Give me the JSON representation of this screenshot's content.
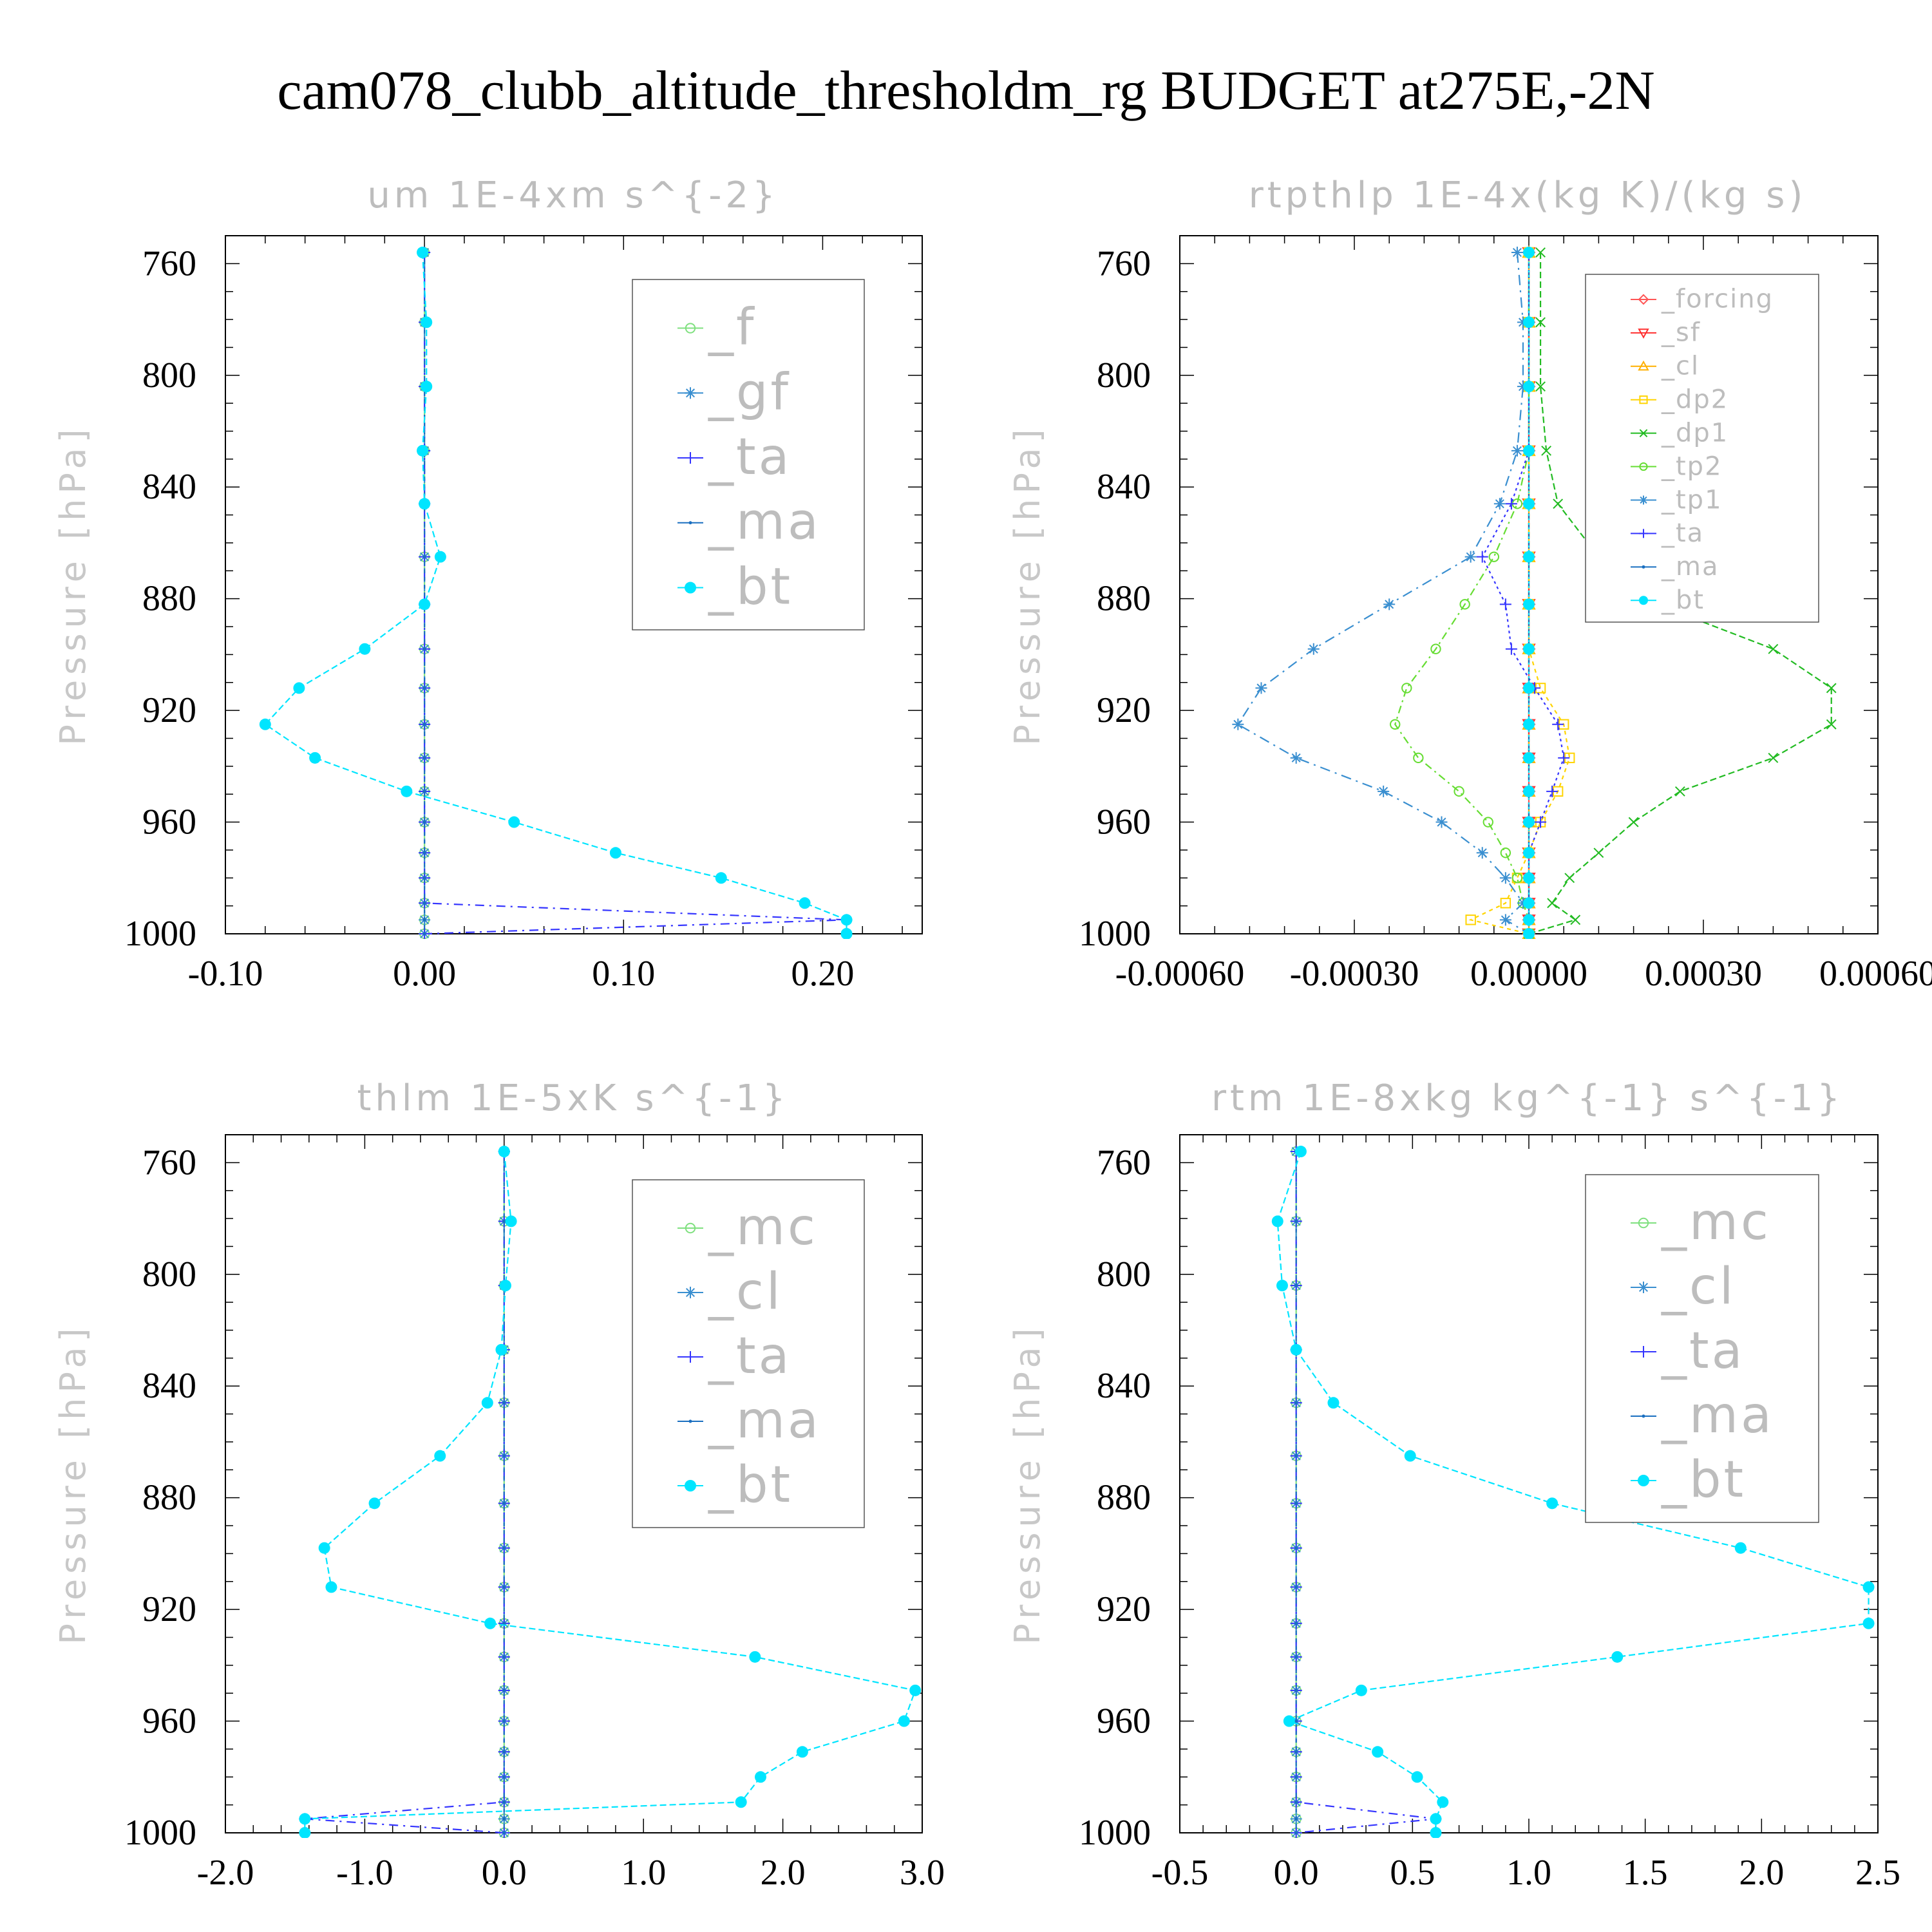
{
  "page_title": "cam078_clubb_altitude_thresholdm_rg  BUDGET at275E,-2N",
  "y_axis_label": "Pressure [hPa]",
  "chart_data": [
    {
      "type": "line",
      "title": "um  1E-4xm s^{-2}",
      "ylabel": "Pressure [hPa]",
      "y_inverted": true,
      "ylim": [
        1000,
        750
      ],
      "xlim": [
        -0.1,
        0.25
      ],
      "xticks": [
        -0.1,
        0.0,
        0.1,
        0.2
      ],
      "xtick_labels": [
        "-0.10",
        "0.00",
        "0.10",
        "0.20"
      ],
      "yticks": [
        760,
        800,
        840,
        880,
        920,
        960,
        1000
      ],
      "legend_placement": "top-right",
      "y": [
        756,
        781,
        804,
        827,
        846,
        865,
        882,
        898,
        912,
        925,
        937,
        949,
        960,
        971,
        980,
        989,
        995,
        1000
      ],
      "series": [
        {
          "name": "_f",
          "color": "#7fe07f",
          "marker": "circle-open",
          "values": [
            0,
            0,
            0,
            0,
            0,
            0,
            0,
            0,
            0,
            0,
            0,
            0,
            0,
            0,
            0,
            0,
            0,
            0
          ]
        },
        {
          "name": "_gf",
          "color": "#3a8fd0",
          "marker": "asterisk",
          "values": [
            0,
            0,
            0,
            0,
            0,
            0,
            0,
            0,
            0,
            0,
            0,
            0,
            0,
            0,
            0,
            0,
            0,
            0
          ]
        },
        {
          "name": "_ta",
          "color": "#3535ff",
          "marker": "plus",
          "values": [
            0,
            0,
            0,
            0,
            0,
            0,
            0,
            0,
            0,
            0,
            0,
            0,
            0,
            0,
            0,
            0,
            0.212,
            0.0
          ]
        },
        {
          "name": "_ma",
          "color": "#1a6fc0",
          "marker": "dot",
          "values": [
            0,
            0,
            0,
            0,
            0,
            0,
            0,
            0,
            0,
            0,
            0,
            0,
            0,
            0,
            0,
            0,
            0,
            0
          ]
        },
        {
          "name": "_bt",
          "color": "#00e5ff",
          "marker": "filled-circle",
          "values": [
            -0.001,
            0.001,
            0.001,
            -0.001,
            0.0,
            0.008,
            0.0,
            -0.03,
            -0.063,
            -0.08,
            -0.055,
            -0.009,
            0.045,
            0.096,
            0.149,
            0.191,
            0.212,
            0.212
          ]
        }
      ]
    },
    {
      "type": "line",
      "title": "rtpthlp  1E-4x(kg K)/(kg s)",
      "ylabel": "Pressure [hPa]",
      "y_inverted": true,
      "ylim": [
        1000,
        750
      ],
      "xlim": [
        -0.0006,
        0.0006
      ],
      "xticks": [
        -0.0006,
        -0.0003,
        0.0,
        0.0003,
        0.0006
      ],
      "xtick_labels": [
        "-0.00060",
        "-0.00030",
        "0.00000",
        "0.00030",
        "0.00060"
      ],
      "yticks": [
        760,
        800,
        840,
        880,
        920,
        960,
        1000
      ],
      "legend_placement": "top-right",
      "y": [
        756,
        781,
        804,
        827,
        846,
        865,
        882,
        898,
        912,
        925,
        937,
        949,
        960,
        971,
        980,
        989,
        995,
        1000
      ],
      "series": [
        {
          "name": "_forcing",
          "color": "#ff5555",
          "marker": "diamond",
          "values": [
            0,
            0,
            0,
            0,
            0,
            0,
            0,
            0,
            0,
            0,
            0,
            0,
            0,
            0,
            0,
            0,
            0,
            0
          ]
        },
        {
          "name": "_sf",
          "color": "#ff3030",
          "marker": "triangle-down",
          "values": [
            0,
            0,
            0,
            0,
            0,
            0,
            0,
            0,
            0,
            0,
            0,
            0,
            0,
            0,
            0,
            0,
            0,
            0
          ]
        },
        {
          "name": "_cl",
          "color": "#ffb000",
          "marker": "triangle-up",
          "values": [
            0,
            0,
            0,
            0,
            0,
            0,
            0,
            0,
            0,
            0,
            0,
            0,
            0,
            0,
            0,
            0,
            0,
            0
          ]
        },
        {
          "name": "_dp2",
          "color": "#ffd400",
          "marker": "square",
          "values": [
            0,
            0,
            0,
            0,
            0,
            0.0,
            0.0,
            0.0,
            2e-05,
            6e-05,
            7e-05,
            5e-05,
            2e-05,
            0.0,
            -2e-05,
            -4e-05,
            -0.0001,
            0.0
          ]
        },
        {
          "name": "_dp1",
          "color": "#22bb22",
          "marker": "cross",
          "values": [
            2e-05,
            2e-05,
            2e-05,
            3e-05,
            5e-05,
            0.00012,
            0.00022,
            0.00042,
            0.00052,
            0.00052,
            0.00042,
            0.00026,
            0.00018,
            0.00012,
            7e-05,
            4e-05,
            8e-05,
            0.0
          ]
        },
        {
          "name": "_tp2",
          "color": "#66dd33",
          "marker": "circle-open",
          "values": [
            0,
            0,
            0,
            0,
            -2e-05,
            -6e-05,
            -0.00011,
            -0.00016,
            -0.00021,
            -0.00023,
            -0.00019,
            -0.00012,
            -7e-05,
            -4e-05,
            -2e-05,
            -1e-05,
            0.0,
            0.0
          ]
        },
        {
          "name": "_tp1",
          "color": "#3a8fd0",
          "marker": "asterisk",
          "values": [
            -2e-05,
            -1e-05,
            -1e-05,
            -2e-05,
            -5e-05,
            -0.0001,
            -0.00024,
            -0.00037,
            -0.00046,
            -0.0005,
            -0.0004,
            -0.00025,
            -0.00015,
            -8e-05,
            -4e-05,
            -1e-05,
            -4e-05,
            0.0
          ]
        },
        {
          "name": "_ta",
          "color": "#3535ff",
          "marker": "plus",
          "values": [
            0,
            0,
            0,
            0,
            -3e-05,
            -8e-05,
            -4e-05,
            -3e-05,
            1e-05,
            5e-05,
            6e-05,
            4e-05,
            2e-05,
            0.0,
            0.0,
            0.0,
            0.0,
            0.0
          ]
        },
        {
          "name": "_ma",
          "color": "#1a6fc0",
          "marker": "dot",
          "values": [
            0,
            0,
            0,
            0,
            0,
            0,
            0,
            0,
            0,
            0,
            0,
            0,
            0,
            0,
            0,
            0,
            0,
            0
          ]
        },
        {
          "name": "_bt",
          "color": "#00e5ff",
          "marker": "filled-circle",
          "values": [
            0,
            0,
            0,
            0,
            0,
            0,
            0,
            0,
            0,
            0,
            0,
            0,
            0,
            0,
            0,
            0,
            0,
            0
          ]
        }
      ]
    },
    {
      "type": "line",
      "title": "thlm  1E-5xK s^{-1}",
      "ylabel": "Pressure [hPa]",
      "y_inverted": true,
      "ylim": [
        1000,
        750
      ],
      "xlim": [
        -2.0,
        3.0
      ],
      "xticks": [
        -2.0,
        -1.0,
        0.0,
        1.0,
        2.0,
        3.0
      ],
      "xtick_labels": [
        "-2.0",
        "-1.0",
        "0.0",
        "1.0",
        "2.0",
        "3.0"
      ],
      "yticks": [
        760,
        800,
        840,
        880,
        920,
        960,
        1000
      ],
      "legend_placement": "top-right",
      "y": [
        756,
        781,
        804,
        827,
        846,
        865,
        882,
        898,
        912,
        925,
        937,
        949,
        960,
        971,
        980,
        989,
        995,
        1000
      ],
      "series": [
        {
          "name": "_mc",
          "color": "#7fe07f",
          "marker": "circle-open",
          "values": [
            0,
            0,
            0,
            0,
            0,
            0,
            0,
            0,
            0,
            0,
            0,
            0,
            0,
            0,
            0,
            0,
            0,
            0
          ]
        },
        {
          "name": "_cl",
          "color": "#3a8fd0",
          "marker": "asterisk",
          "values": [
            0,
            0,
            0,
            0,
            0,
            0,
            0,
            0,
            0,
            0,
            0,
            0,
            0,
            0,
            0,
            0,
            0,
            0
          ]
        },
        {
          "name": "_ta",
          "color": "#3535ff",
          "marker": "plus",
          "values": [
            0,
            0,
            0,
            0,
            0,
            0,
            0,
            0,
            0,
            0,
            0,
            0,
            0,
            0,
            0,
            0,
            -1.43,
            0.0
          ]
        },
        {
          "name": "_ma",
          "color": "#1a6fc0",
          "marker": "dot",
          "values": [
            0,
            0,
            0,
            0,
            0,
            0,
            0,
            0,
            0,
            0,
            0,
            0,
            0,
            0,
            0,
            0,
            0,
            0
          ]
        },
        {
          "name": "_bt",
          "color": "#00e5ff",
          "marker": "filled-circle",
          "values": [
            0.0,
            0.05,
            0.01,
            -0.02,
            -0.12,
            -0.46,
            -0.93,
            -1.29,
            -1.24,
            -0.1,
            1.8,
            2.95,
            2.87,
            2.14,
            1.84,
            1.7,
            -1.43,
            -1.43
          ]
        }
      ]
    },
    {
      "type": "line",
      "title": "rtm  1E-8xkg kg^{-1} s^{-1}",
      "ylabel": "Pressure [hPa]",
      "y_inverted": true,
      "ylim": [
        1000,
        750
      ],
      "xlim": [
        -0.5,
        2.5
      ],
      "xticks": [
        -0.5,
        0.0,
        0.5,
        1.0,
        1.5,
        2.0,
        2.5
      ],
      "xtick_labels": [
        "-0.5",
        "0.0",
        "0.5",
        "1.0",
        "1.5",
        "2.0",
        "2.5"
      ],
      "yticks": [
        760,
        800,
        840,
        880,
        920,
        960,
        1000
      ],
      "legend_placement": "top-right",
      "y": [
        756,
        781,
        804,
        827,
        846,
        865,
        882,
        898,
        912,
        925,
        937,
        949,
        960,
        971,
        980,
        989,
        995,
        1000
      ],
      "series": [
        {
          "name": "_mc",
          "color": "#7fe07f",
          "marker": "circle-open",
          "values": [
            0,
            0,
            0,
            0,
            0,
            0,
            0,
            0,
            0,
            0,
            0,
            0,
            0,
            0,
            0,
            0,
            0,
            0
          ]
        },
        {
          "name": "_cl",
          "color": "#3a8fd0",
          "marker": "asterisk",
          "values": [
            0,
            0,
            0,
            0,
            0,
            0,
            0,
            0,
            0,
            0,
            0,
            0,
            0,
            0,
            0,
            0,
            0,
            0
          ]
        },
        {
          "name": "_ta",
          "color": "#3535ff",
          "marker": "plus",
          "values": [
            0,
            0,
            0,
            0,
            0,
            0,
            0,
            0,
            0,
            0,
            0,
            0,
            0,
            0,
            0,
            0,
            0.6,
            0.0
          ]
        },
        {
          "name": "_ma",
          "color": "#1a6fc0",
          "marker": "dot",
          "values": [
            0,
            0,
            0,
            0,
            0,
            0,
            0,
            0,
            0,
            0,
            0,
            0,
            0,
            0,
            0,
            0,
            0,
            0
          ]
        },
        {
          "name": "_bt",
          "color": "#00e5ff",
          "marker": "filled-circle",
          "values": [
            0.02,
            -0.08,
            -0.06,
            0.0,
            0.16,
            0.49,
            1.1,
            1.91,
            2.46,
            2.46,
            1.38,
            0.28,
            -0.03,
            0.35,
            0.52,
            0.63,
            0.6,
            0.6
          ]
        }
      ]
    }
  ]
}
